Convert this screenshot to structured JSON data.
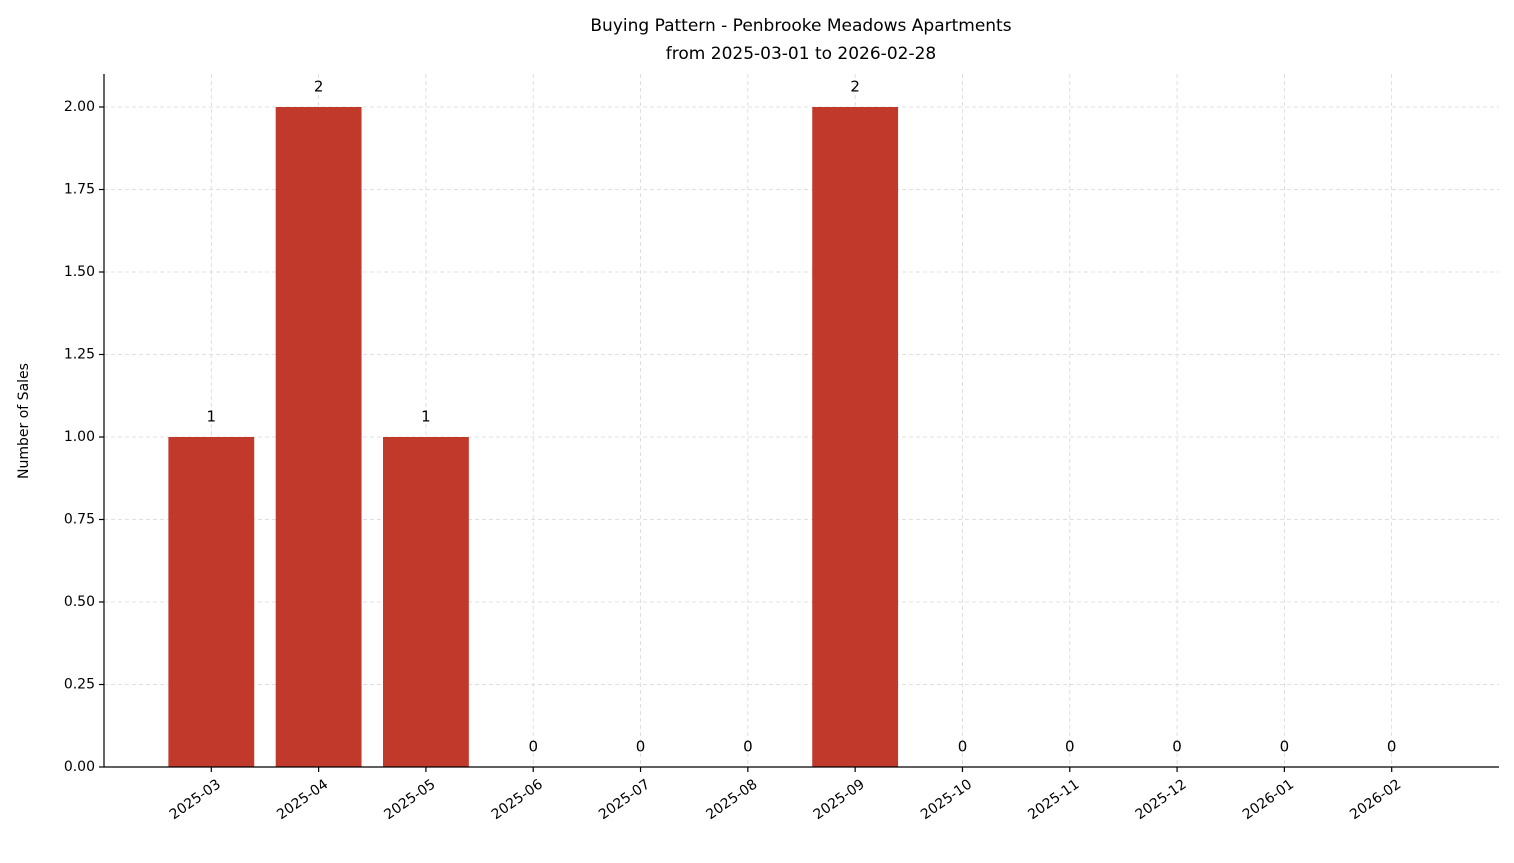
{
  "chart_data": {
    "type": "bar",
    "title": "Buying Pattern - Penbrooke Meadows Apartments",
    "subtitle": "from 2025-03-01 to 2026-02-28",
    "y_label": "Number of Sales",
    "categories": [
      "2025-03",
      "2025-04",
      "2025-05",
      "2025-06",
      "2025-07",
      "2025-08",
      "2025-09",
      "2025-10",
      "2025-11",
      "2025-12",
      "2026-01",
      "2026-02"
    ],
    "values": [
      1,
      2,
      1,
      0,
      0,
      0,
      2,
      0,
      0,
      0,
      0,
      0
    ],
    "color": "#c0392b",
    "ylim": [
      0,
      2.1
    ],
    "yticks": [
      {
        "value": 0,
        "label": "0.00"
      },
      {
        "value": 0.25,
        "label": "0.25"
      },
      {
        "value": 0.5,
        "label": "0.50"
      },
      {
        "value": 0.75,
        "label": "0.75"
      },
      {
        "value": 1,
        "label": "1.00"
      },
      {
        "value": 1.25,
        "label": "1.25"
      },
      {
        "value": 1.5,
        "label": "1.50"
      },
      {
        "value": 1.75,
        "label": "1.75"
      },
      {
        "value": 2,
        "label": "2.00"
      }
    ],
    "grid": true
  }
}
